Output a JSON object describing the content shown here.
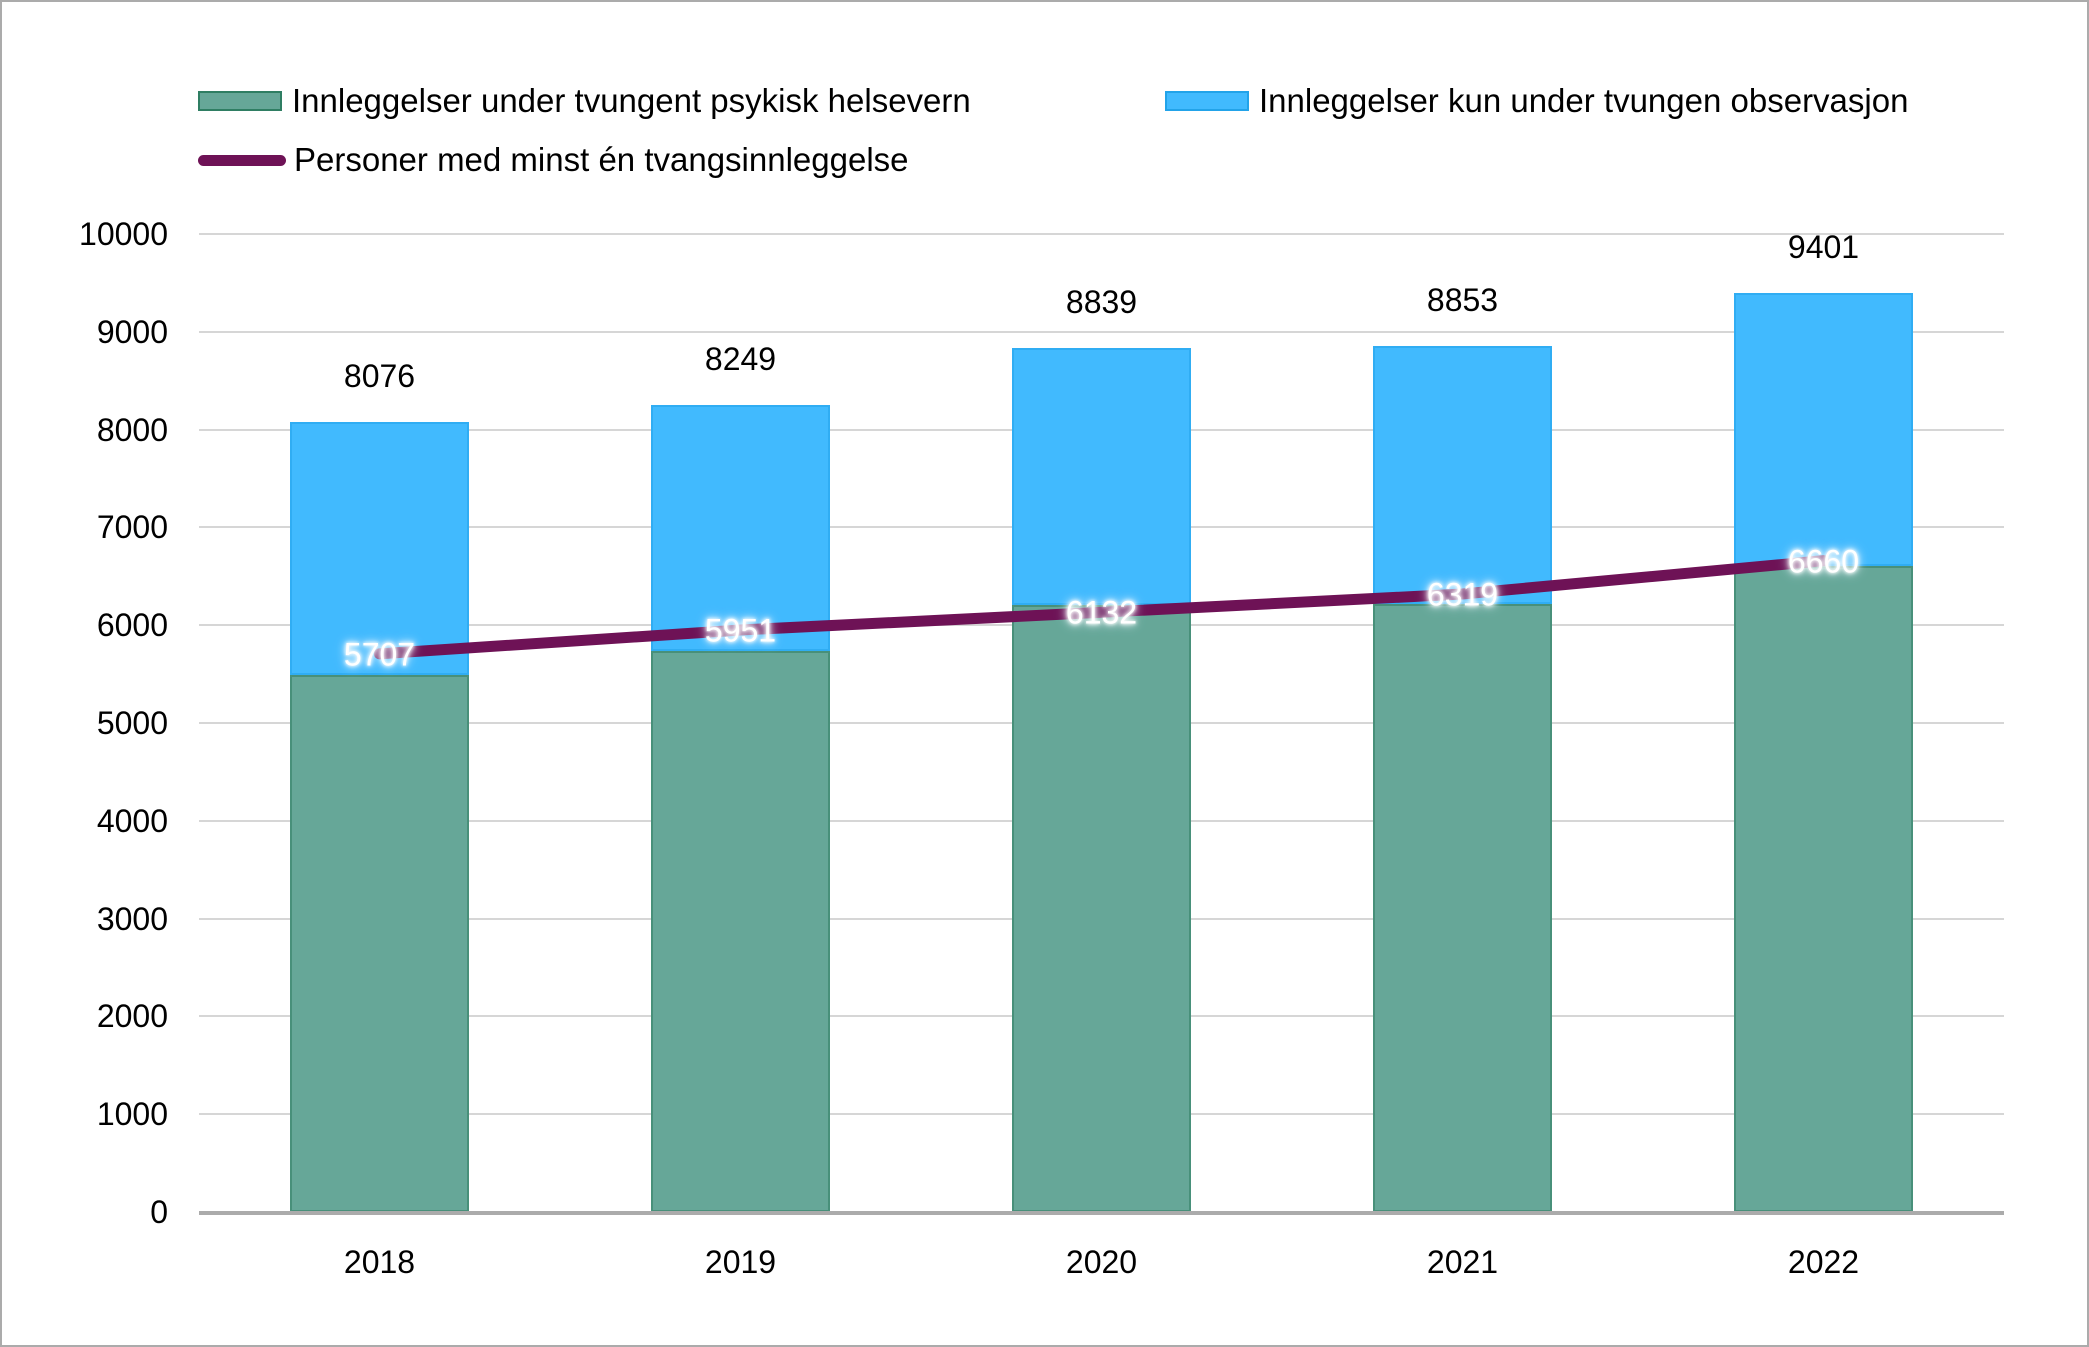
{
  "legend": {
    "items": [
      {
        "label": "Innleggelser under tvungent psykisk helsevern",
        "swatch": "green-bar"
      },
      {
        "label": "Innleggelser kun under tvungen observasjon",
        "swatch": "blue-bar"
      },
      {
        "label": "Personer med minst én tvangsinnleggelse",
        "swatch": "purple-line"
      }
    ]
  },
  "colors": {
    "bar_green": "#66A798",
    "bar_green_border": "#2F7E63",
    "bar_blue": "#41BAFE",
    "bar_blue_border": "#22A3E9",
    "line_purple": "#6E1256",
    "gridline": "#D6D6D6",
    "axis_line": "#ABABAB",
    "frame_border": "#ABABAB",
    "background": "#FFFFFF",
    "text": "#000000",
    "line_label_text": "#FFFFFF"
  },
  "chart_data": {
    "type": "bar",
    "subtype": "stacked-bars-with-line-overlay",
    "categories": [
      "2018",
      "2019",
      "2020",
      "2021",
      "2022"
    ],
    "series": [
      {
        "name": "Innleggelser under tvungent psykisk helsevern",
        "type": "bar",
        "stack": true,
        "color": "#66A798",
        "values": [
          5490,
          5735,
          6205,
          6220,
          6605
        ]
      },
      {
        "name": "Innleggelser kun under tvungen observasjon",
        "type": "bar",
        "stack": true,
        "color": "#41BAFE",
        "values": [
          2586,
          2514,
          2634,
          2633,
          2796
        ]
      },
      {
        "name": "Personer med minst én tvangsinnleggelse",
        "type": "line",
        "color": "#6E1256",
        "values": [
          5707,
          5951,
          6132,
          6319,
          6660
        ]
      }
    ],
    "stack_total_labels": [
      "8076",
      "8249",
      "8839",
      "8853",
      "9401"
    ],
    "line_point_labels": [
      "5707",
      "5951",
      "6132",
      "6319",
      "6660"
    ],
    "yticks": [
      "0",
      "1000",
      "2000",
      "3000",
      "4000",
      "5000",
      "6000",
      "7000",
      "8000",
      "9000",
      "10000"
    ],
    "ylim": [
      0,
      10000
    ],
    "ytick_step": 1000,
    "grid": "horizontal",
    "legend_position": "top",
    "title": "",
    "xlabel": "",
    "ylabel": ""
  }
}
